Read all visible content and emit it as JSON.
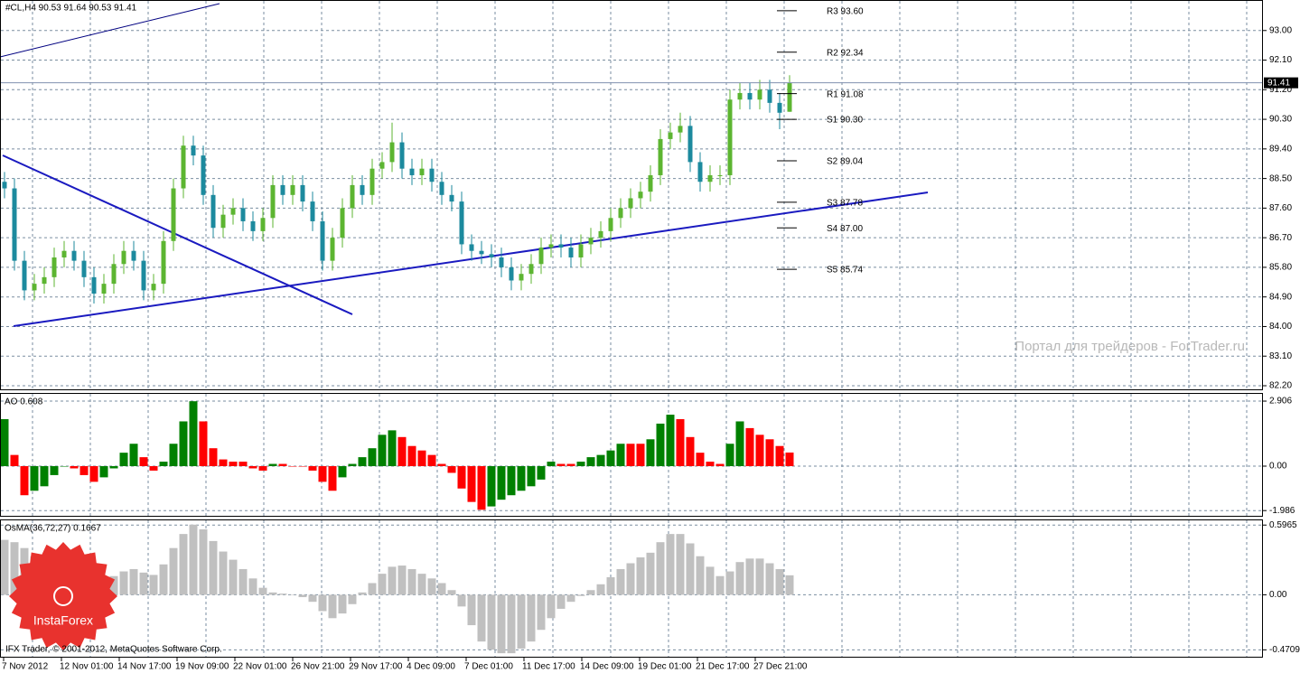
{
  "chart_data": [
    {
      "type": "candlestick",
      "title": "#CL,H4  90.53 91.64 90.53 91.41",
      "up_color": "#5cb531",
      "down_color": "#1c8a9e",
      "values": [
        [
          88.4,
          88.7,
          87.9,
          88.2
        ],
        [
          88.2,
          88.5,
          85.7,
          86.0
        ],
        [
          86.0,
          86.3,
          84.8,
          85.1
        ],
        [
          85.1,
          85.6,
          84.8,
          85.3
        ],
        [
          85.3,
          85.8,
          85.0,
          85.5
        ],
        [
          85.5,
          86.4,
          85.2,
          86.1
        ],
        [
          86.1,
          86.6,
          85.8,
          86.3
        ],
        [
          86.3,
          86.6,
          85.7,
          86.0
        ],
        [
          86.0,
          86.3,
          85.2,
          85.5
        ],
        [
          85.5,
          85.8,
          84.7,
          85.0
        ],
        [
          85.0,
          85.6,
          84.7,
          85.3
        ],
        [
          85.3,
          86.2,
          85.0,
          85.9
        ],
        [
          85.9,
          86.6,
          85.6,
          86.3
        ],
        [
          86.3,
          86.6,
          85.7,
          86.0
        ],
        [
          86.0,
          86.3,
          84.8,
          85.1
        ],
        [
          85.1,
          85.6,
          84.8,
          85.3
        ],
        [
          85.3,
          86.9,
          85.0,
          86.6
        ],
        [
          86.6,
          88.5,
          86.3,
          88.2
        ],
        [
          88.2,
          89.8,
          87.9,
          89.5
        ],
        [
          89.5,
          89.8,
          88.9,
          89.2
        ],
        [
          89.2,
          89.5,
          87.7,
          88.0
        ],
        [
          88.0,
          88.3,
          86.7,
          87.0
        ],
        [
          87.0,
          87.7,
          86.7,
          87.4
        ],
        [
          87.4,
          87.9,
          87.1,
          87.6
        ],
        [
          87.6,
          87.9,
          86.9,
          87.2
        ],
        [
          87.2,
          87.5,
          86.6,
          86.9
        ],
        [
          86.9,
          87.6,
          86.6,
          87.3
        ],
        [
          87.3,
          88.6,
          87.0,
          88.3
        ],
        [
          88.3,
          88.6,
          87.7,
          88.0
        ],
        [
          88.0,
          88.6,
          87.7,
          88.3
        ],
        [
          88.3,
          88.6,
          87.5,
          87.8
        ],
        [
          87.8,
          88.1,
          86.9,
          87.2
        ],
        [
          87.2,
          87.5,
          85.7,
          86.0
        ],
        [
          86.0,
          87.0,
          85.7,
          86.7
        ],
        [
          86.7,
          87.9,
          86.4,
          87.6
        ],
        [
          87.6,
          88.6,
          87.3,
          88.3
        ],
        [
          88.3,
          88.6,
          87.7,
          88.0
        ],
        [
          88.0,
          89.1,
          87.7,
          88.8
        ],
        [
          88.8,
          89.3,
          88.5,
          89.0
        ],
        [
          89.0,
          90.2,
          88.7,
          89.6
        ],
        [
          89.6,
          89.9,
          88.5,
          88.8
        ],
        [
          88.8,
          89.1,
          88.3,
          88.6
        ],
        [
          88.6,
          89.1,
          88.3,
          88.8
        ],
        [
          88.8,
          89.1,
          88.1,
          88.4
        ],
        [
          88.4,
          88.7,
          87.7,
          88.0
        ],
        [
          88.0,
          88.3,
          87.5,
          87.8
        ],
        [
          87.8,
          88.1,
          86.2,
          86.5
        ],
        [
          86.5,
          86.8,
          86.0,
          86.3
        ],
        [
          86.3,
          86.6,
          85.9,
          86.2
        ],
        [
          86.2,
          86.5,
          85.8,
          86.1
        ],
        [
          86.1,
          86.4,
          85.5,
          85.8
        ],
        [
          85.8,
          86.1,
          85.1,
          85.4
        ],
        [
          85.4,
          85.9,
          85.1,
          85.6
        ],
        [
          85.6,
          86.2,
          85.3,
          85.9
        ],
        [
          85.9,
          86.7,
          85.6,
          86.4
        ],
        [
          86.4,
          86.8,
          86.1,
          86.5
        ],
        [
          86.5,
          86.8,
          86.1,
          86.4
        ],
        [
          86.4,
          86.7,
          85.8,
          86.1
        ],
        [
          86.1,
          86.8,
          85.8,
          86.5
        ],
        [
          86.5,
          87.0,
          86.2,
          86.7
        ],
        [
          86.7,
          87.2,
          86.4,
          86.9
        ],
        [
          86.9,
          87.6,
          86.6,
          87.3
        ],
        [
          87.3,
          87.9,
          87.0,
          87.6
        ],
        [
          87.6,
          88.2,
          87.3,
          87.9
        ],
        [
          87.9,
          88.4,
          87.6,
          88.1
        ],
        [
          88.1,
          88.9,
          87.8,
          88.6
        ],
        [
          88.6,
          90.0,
          88.3,
          89.7
        ],
        [
          89.7,
          90.2,
          89.4,
          89.9
        ],
        [
          89.9,
          90.5,
          89.6,
          90.1
        ],
        [
          90.1,
          90.4,
          88.7,
          89.0
        ],
        [
          89.0,
          89.3,
          88.1,
          88.4
        ],
        [
          88.4,
          88.9,
          88.1,
          88.6
        ],
        [
          88.6,
          88.9,
          88.3,
          88.6
        ],
        [
          88.6,
          91.2,
          88.3,
          90.9
        ],
        [
          90.9,
          91.4,
          90.6,
          91.1
        ],
        [
          91.1,
          91.4,
          90.6,
          90.9
        ],
        [
          90.9,
          91.5,
          90.6,
          91.2
        ],
        [
          91.2,
          91.5,
          90.5,
          90.8
        ],
        [
          90.8,
          91.1,
          90.0,
          90.5
        ],
        [
          90.53,
          91.64,
          90.53,
          91.41
        ]
      ],
      "ylim": [
        82.09,
        93.9
      ],
      "yticks": [
        {
          "value": 93.0,
          "label": "93.00"
        },
        {
          "value": 92.1,
          "label": "92.10"
        },
        {
          "value": 91.2,
          "label": "91.20"
        },
        {
          "value": 90.3,
          "label": "90.30"
        },
        {
          "value": 89.4,
          "label": "89.40"
        },
        {
          "value": 88.5,
          "label": "88.50"
        },
        {
          "value": 87.6,
          "label": "87.60"
        },
        {
          "value": 86.7,
          "label": "86.70"
        },
        {
          "value": 85.8,
          "label": "85.80"
        },
        {
          "value": 84.9,
          "label": "84.90"
        },
        {
          "value": 84.0,
          "label": "84.00"
        },
        {
          "value": 83.1,
          "label": "83.10"
        },
        {
          "value": 82.2,
          "label": "82.20"
        }
      ],
      "grid": true,
      "time_labels": [
        "7 Nov 2012",
        "12 Nov 01:00",
        "14 Nov 17:00",
        "19 Nov 09:00",
        "22 Nov 01:00",
        "26 Nov 21:00",
        "29 Nov 17:00",
        "4 Dec 09:00",
        "7 Dec 01:00",
        "11 Dec 17:00",
        "14 Dec 09:00",
        "19 Dec 01:00",
        "21 Dec 17:00",
        "27 Dec 21:00"
      ],
      "pivots": [
        {
          "label": "R3 93.60",
          "value": 93.6
        },
        {
          "label": "R2 92.34",
          "value": 92.34
        },
        {
          "label": "R1 91.08",
          "value": 91.08
        },
        {
          "label": "S1 90.30",
          "value": 90.3
        },
        {
          "label": "S2 89.04",
          "value": 89.04
        },
        {
          "label": "S3 87.78",
          "value": 87.78
        },
        {
          "label": "S4 87.00",
          "value": 87.0
        },
        {
          "label": "S5 85.74",
          "value": 85.74
        }
      ]
    },
    {
      "type": "bar",
      "title": "AO 0.608",
      "up_color": "#008000",
      "down_color": "#ff0000",
      "values": [
        2.1,
        0.5,
        -1.3,
        -1.1,
        -0.9,
        -0.4,
        0.0,
        -0.1,
        -0.4,
        -0.7,
        -0.5,
        -0.1,
        0.6,
        1.0,
        0.4,
        -0.2,
        0.2,
        1.0,
        2.0,
        2.9,
        2.0,
        0.8,
        0.3,
        0.2,
        0.2,
        -0.1,
        -0.2,
        0.1,
        0.1,
        0.0,
        0.0,
        -0.2,
        -0.7,
        -1.1,
        -0.5,
        0.1,
        0.4,
        0.8,
        1.4,
        1.6,
        1.3,
        0.9,
        0.7,
        0.5,
        0.1,
        -0.3,
        -1.0,
        -1.6,
        -1.95,
        -1.8,
        -1.5,
        -1.3,
        -1.1,
        -0.9,
        -0.6,
        0.2,
        0.1,
        0.1,
        0.2,
        0.4,
        0.5,
        0.7,
        1.0,
        1.0,
        1.0,
        1.2,
        1.9,
        2.3,
        2.1,
        1.3,
        0.6,
        0.2,
        0.1,
        1.0,
        2.0,
        1.7,
        1.4,
        1.2,
        0.9,
        0.608
      ],
      "ylim": [
        -2.22,
        3.23
      ],
      "yticks": [
        2.906,
        {
          "value": 0,
          "label": "0.00"
        },
        -1.986
      ],
      "grid": true
    },
    {
      "type": "bar",
      "title": "OsMA(36,72,27) 0.1667",
      "color": "#c0c0c0",
      "values": [
        0.47,
        0.45,
        0.4,
        0.33,
        0.27,
        0.24,
        0.22,
        0.2,
        0.17,
        0.15,
        0.14,
        0.16,
        0.2,
        0.22,
        0.19,
        0.17,
        0.26,
        0.4,
        0.52,
        0.6,
        0.56,
        0.46,
        0.37,
        0.3,
        0.22,
        0.14,
        0.06,
        0.02,
        0.01,
        0.0,
        -0.02,
        -0.06,
        -0.14,
        -0.2,
        -0.16,
        -0.08,
        0.02,
        0.1,
        0.18,
        0.24,
        0.25,
        0.22,
        0.18,
        0.14,
        0.1,
        0.04,
        -0.1,
        -0.26,
        -0.4,
        -0.47,
        -0.5,
        -0.5,
        -0.46,
        -0.4,
        -0.3,
        -0.2,
        -0.12,
        -0.06,
        -0.01,
        0.04,
        0.09,
        0.15,
        0.22,
        0.27,
        0.32,
        0.36,
        0.45,
        0.52,
        0.52,
        0.44,
        0.33,
        0.24,
        0.16,
        0.2,
        0.28,
        0.31,
        0.31,
        0.27,
        0.22,
        0.1667
      ],
      "ylim": [
        -0.53,
        0.637
      ],
      "yticks": [
        0.5965,
        {
          "value": 0,
          "label": "0.00"
        },
        -0.4709
      ],
      "grid": true
    }
  ],
  "watermark": "Портал для трейдеров - ForTrader.ru",
  "footer": "IFX Trader, © 2001-2012, MetaQuotes Software Corp.",
  "logo": "InstaForex"
}
